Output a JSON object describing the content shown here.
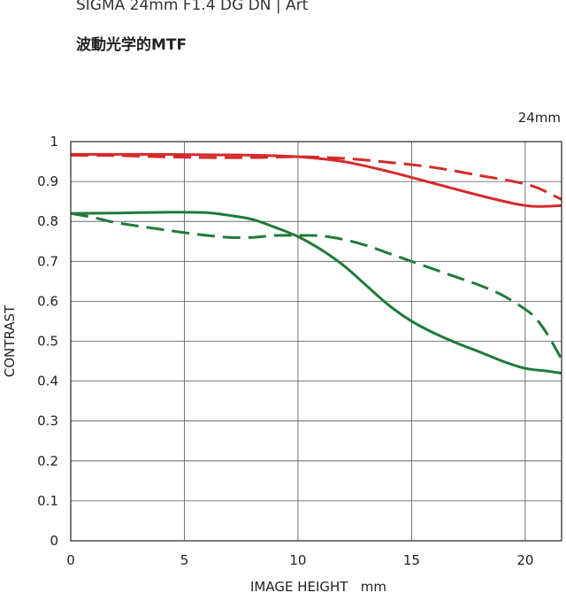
{
  "header": {
    "product": "SIGMA 24mm F1.4 DG DN | Art",
    "subtitle": "波動光学的MTF",
    "focal_length": "24mm"
  },
  "chart_data": {
    "type": "line",
    "title": "波動光学的MTF",
    "xlabel": "IMAGE HEIGHT   mm",
    "ylabel": "CONTRAST",
    "xlim": [
      0,
      21.6
    ],
    "ylim": [
      0,
      1
    ],
    "xticks": [
      0,
      5,
      10,
      15,
      20
    ],
    "yticks": [
      0,
      0.1,
      0.2,
      0.3,
      0.4,
      0.5,
      0.6,
      0.7,
      0.8,
      0.9,
      1
    ],
    "ytick_labels": [
      "0",
      "0.1",
      "0.2",
      "0.3",
      "0.4",
      "0.5",
      "0.6",
      "0.7",
      "0.8",
      "0.9",
      "1"
    ],
    "grid": true,
    "series": [
      {
        "color": "#d42a2a",
        "dash": "solid",
        "points": [
          [
            0,
            0.968
          ],
          [
            2,
            0.968
          ],
          [
            4,
            0.968
          ],
          [
            6,
            0.967
          ],
          [
            8,
            0.966
          ],
          [
            10,
            0.962
          ],
          [
            12,
            0.95
          ],
          [
            14,
            0.925
          ],
          [
            16,
            0.895
          ],
          [
            18,
            0.865
          ],
          [
            19.5,
            0.845
          ],
          [
            20.3,
            0.838
          ],
          [
            21,
            0.838
          ],
          [
            21.6,
            0.84
          ]
        ]
      },
      {
        "color": "#d42a2a",
        "dash": "dashed",
        "points": [
          [
            0,
            0.966
          ],
          [
            2,
            0.965
          ],
          [
            4,
            0.962
          ],
          [
            6,
            0.96
          ],
          [
            8,
            0.96
          ],
          [
            10,
            0.962
          ],
          [
            12,
            0.958
          ],
          [
            14,
            0.948
          ],
          [
            16,
            0.935
          ],
          [
            18,
            0.915
          ],
          [
            19.5,
            0.9
          ],
          [
            20.5,
            0.885
          ],
          [
            21.6,
            0.855
          ]
        ]
      },
      {
        "color": "#1f7a3a",
        "dash": "solid",
        "points": [
          [
            0,
            0.82
          ],
          [
            2,
            0.821
          ],
          [
            4,
            0.823
          ],
          [
            5,
            0.823
          ],
          [
            6,
            0.822
          ],
          [
            7,
            0.815
          ],
          [
            8,
            0.805
          ],
          [
            9,
            0.785
          ],
          [
            10,
            0.762
          ],
          [
            11,
            0.73
          ],
          [
            12,
            0.69
          ],
          [
            13,
            0.64
          ],
          [
            14,
            0.59
          ],
          [
            15,
            0.55
          ],
          [
            16,
            0.52
          ],
          [
            17,
            0.495
          ],
          [
            18,
            0.473
          ],
          [
            19,
            0.45
          ],
          [
            20,
            0.432
          ],
          [
            21,
            0.425
          ],
          [
            21.6,
            0.42
          ]
        ]
      },
      {
        "color": "#1f7a3a",
        "dash": "dashed",
        "points": [
          [
            0,
            0.82
          ],
          [
            1,
            0.81
          ],
          [
            2,
            0.797
          ],
          [
            4,
            0.78
          ],
          [
            5,
            0.772
          ],
          [
            6,
            0.765
          ],
          [
            7,
            0.76
          ],
          [
            8,
            0.76
          ],
          [
            9,
            0.765
          ],
          [
            10,
            0.765
          ],
          [
            11,
            0.764
          ],
          [
            12,
            0.755
          ],
          [
            13,
            0.74
          ],
          [
            14,
            0.72
          ],
          [
            15,
            0.7
          ],
          [
            16,
            0.68
          ],
          [
            17,
            0.66
          ],
          [
            18,
            0.64
          ],
          [
            19,
            0.615
          ],
          [
            20,
            0.58
          ],
          [
            20.5,
            0.555
          ],
          [
            21,
            0.515
          ],
          [
            21.6,
            0.455
          ]
        ]
      }
    ]
  }
}
